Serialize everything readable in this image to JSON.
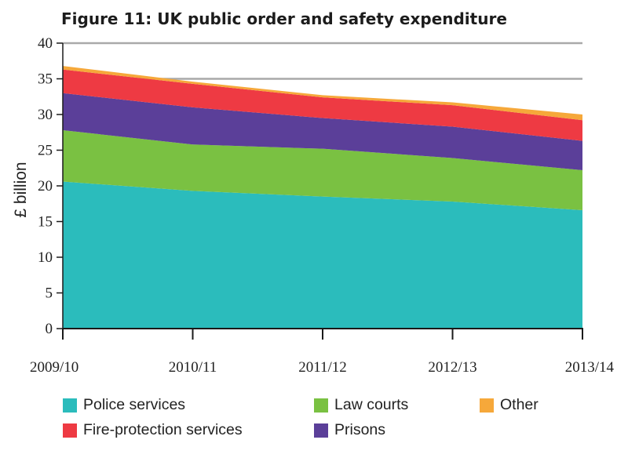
{
  "chart_data": {
    "type": "area",
    "stacked": true,
    "title": "Figure 11: UK public order and safety expenditure",
    "xlabel": "",
    "ylabel": "£ billion",
    "categories": [
      "2009/10",
      "2010/11",
      "2011/12",
      "2012/13",
      "2013/14"
    ],
    "ylim": [
      0,
      40
    ],
    "yticks": [
      0,
      5,
      10,
      15,
      20,
      25,
      30,
      35,
      40
    ],
    "gridlines": [
      35,
      40
    ],
    "legend_position": "bottom",
    "series": [
      {
        "name": "Police services",
        "color": "#2bbcbc",
        "values": [
          20.6,
          19.3,
          18.5,
          17.8,
          16.6
        ]
      },
      {
        "name": "Law courts",
        "color": "#7ac142",
        "values": [
          7.2,
          6.5,
          6.7,
          6.1,
          5.6
        ]
      },
      {
        "name": "Prisons",
        "color": "#5b3f99",
        "values": [
          5.2,
          5.2,
          4.3,
          4.4,
          4.1
        ]
      },
      {
        "name": "Fire-protection services",
        "color": "#ee3a43",
        "values": [
          3.3,
          3.3,
          2.9,
          3.0,
          2.9
        ]
      },
      {
        "name": "Other",
        "color": "#f6a83a",
        "values": [
          0.5,
          0.3,
          0.3,
          0.4,
          0.8
        ]
      }
    ],
    "legend_order": [
      "Police services",
      "Law courts",
      "Other",
      "Fire-protection services",
      "Prisons"
    ]
  }
}
